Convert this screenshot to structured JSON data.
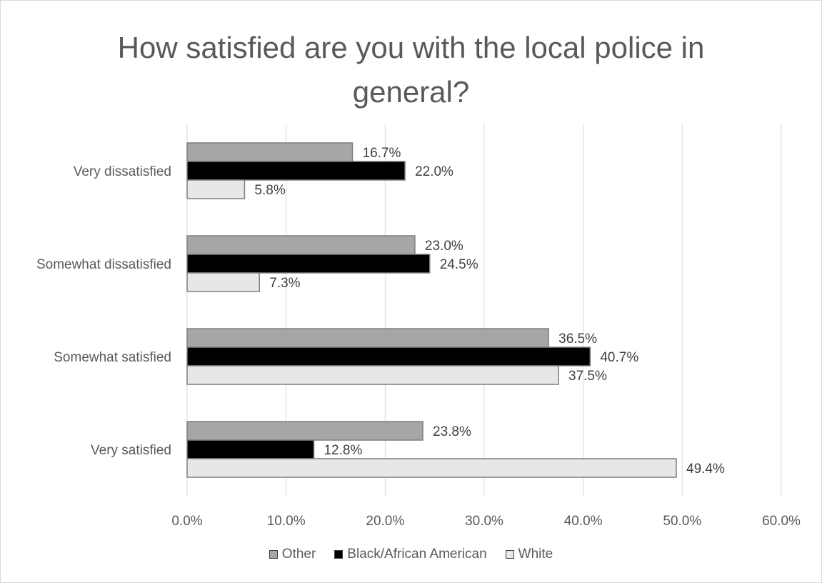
{
  "chart_data": {
    "type": "bar",
    "orientation": "horizontal",
    "title": "How satisfied are you with the local police in general?",
    "categories": [
      "Very dissatisfied",
      "Somewhat dissatisfied",
      "Somewhat satisfied",
      "Very satisfied"
    ],
    "series": [
      {
        "name": "Other",
        "color": "#a6a6a6",
        "values": [
          16.7,
          23.0,
          36.5,
          23.8
        ],
        "labels": [
          "16.7%",
          "23.0%",
          "36.5%",
          "23.8%"
        ]
      },
      {
        "name": "Black/African American",
        "color": "#000000",
        "values": [
          22.0,
          24.5,
          40.7,
          12.8
        ],
        "labels": [
          "22.0%",
          "24.5%",
          "40.7%",
          "12.8%"
        ]
      },
      {
        "name": "White",
        "color": "#e7e7e7",
        "values": [
          5.8,
          7.3,
          37.5,
          49.4
        ],
        "labels": [
          "5.8%",
          "7.3%",
          "37.5%",
          "49.4%"
        ]
      }
    ],
    "xlim": [
      0,
      60
    ],
    "xticks": [
      "0.0%",
      "10.0%",
      "20.0%",
      "30.0%",
      "40.0%",
      "50.0%",
      "60.0%"
    ],
    "xlabel": "",
    "ylabel": "",
    "grid": "vertical",
    "legend_position": "bottom"
  }
}
